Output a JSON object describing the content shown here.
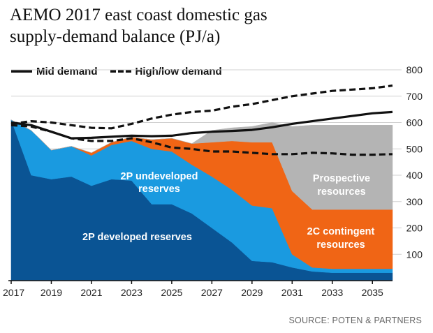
{
  "title": {
    "line1": "AEMO 2017 east coast domestic gas",
    "line2": "supply-demand balance (PJ/a)"
  },
  "legend": {
    "mid_demand": "Mid demand",
    "high_low_demand": "High/low demand"
  },
  "source": "SOURCE: POTEN & PARTNERS",
  "colors": {
    "developed": "#0a5494",
    "undeveloped": "#1a9ae0",
    "contingent": "#f06515",
    "prospective": "#b4b4b4",
    "lines": "#111111"
  },
  "chart_data": {
    "type": "area",
    "stacked": true,
    "x": [
      2017,
      2018,
      2019,
      2020,
      2021,
      2022,
      2023,
      2024,
      2025,
      2026,
      2027,
      2028,
      2029,
      2030,
      2031,
      2032,
      2033,
      2034,
      2035,
      2036
    ],
    "series": [
      {
        "name": "2P developed reserves",
        "color": "#0a5494",
        "values": [
          610,
          400,
          385,
          395,
          360,
          385,
          380,
          290,
          290,
          255,
          200,
          145,
          75,
          70,
          50,
          35,
          30,
          30,
          30,
          30
        ]
      },
      {
        "name": "2P undeveloped reserves",
        "color": "#1a9ae0",
        "values": [
          0,
          170,
          110,
          115,
          115,
          130,
          150,
          210,
          200,
          185,
          195,
          200,
          210,
          205,
          50,
          15,
          15,
          15,
          15,
          15
        ]
      },
      {
        "name": "2C contingent resources",
        "color": "#f06515",
        "values": [
          0,
          0,
          0,
          0,
          10,
          10,
          15,
          35,
          50,
          80,
          130,
          185,
          240,
          250,
          240,
          220,
          225,
          225,
          225,
          225
        ]
      },
      {
        "name": "Prospective resources",
        "color": "#b4b4b4",
        "values": [
          0,
          0,
          0,
          0,
          0,
          0,
          0,
          0,
          0,
          0,
          45,
          50,
          60,
          75,
          245,
          320,
          320,
          320,
          320,
          320
        ]
      }
    ],
    "lines": [
      {
        "name": "Mid demand",
        "style": "solid",
        "values": [
          600,
          590,
          565,
          540,
          542,
          546,
          550,
          548,
          550,
          560,
          565,
          568,
          572,
          582,
          595,
          605,
          615,
          625,
          635,
          640
        ]
      },
      {
        "name": "High demand",
        "style": "dashed",
        "values": [
          595,
          605,
          600,
          590,
          580,
          578,
          595,
          615,
          630,
          640,
          645,
          660,
          670,
          685,
          700,
          710,
          720,
          725,
          730,
          740
        ]
      },
      {
        "name": "Low demand",
        "style": "dashed",
        "values": [
          590,
          585,
          565,
          540,
          530,
          530,
          540,
          525,
          505,
          500,
          490,
          490,
          485,
          480,
          480,
          485,
          483,
          478,
          478,
          480
        ]
      }
    ],
    "xticks": [
      "2017",
      "2019",
      "2021",
      "2023",
      "2025",
      "2027",
      "2029",
      "2031",
      "2033",
      "2035"
    ],
    "yticks": [
      "100",
      "200",
      "300",
      "400",
      "500",
      "600",
      "700",
      "800"
    ],
    "area_labels": {
      "developed": "2P developed reserves",
      "undeveloped_line1": "2P undeveloped",
      "undeveloped_line2": "reserves",
      "contingent_line1": "2C contingent",
      "contingent_line2": "resources",
      "prospective_line1": "Prospective",
      "prospective_line2": "resources"
    },
    "xlim": [
      2017,
      2036
    ],
    "ylim": [
      0,
      800
    ],
    "y_axis_side": "right",
    "grid": "horizontal"
  }
}
